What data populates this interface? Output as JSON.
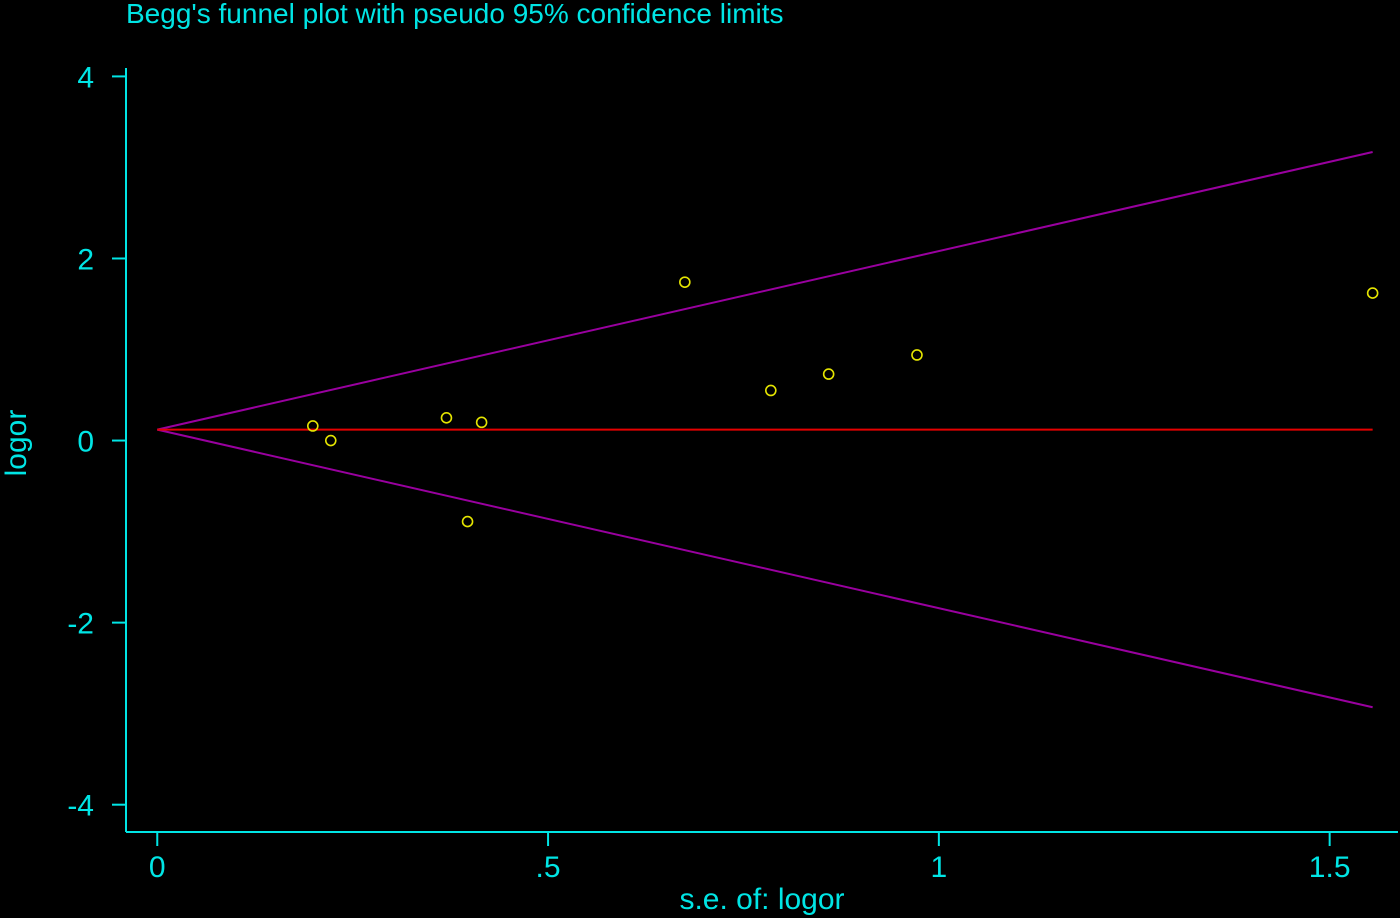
{
  "chart_data": {
    "type": "scatter",
    "title": "Begg's funnel plot with pseudo 95% confidence limits",
    "xlabel": "s.e. of: logor",
    "ylabel": "logor",
    "xlim": [
      -0.04,
      1.59
    ],
    "ylim": [
      -4.3,
      4.4
    ],
    "x_ticks": [
      {
        "value": 0,
        "label": "0"
      },
      {
        "value": 0.5,
        "label": ".5"
      },
      {
        "value": 1,
        "label": "1"
      },
      {
        "value": 1.5,
        "label": "1.5"
      }
    ],
    "y_ticks": [
      {
        "value": 4,
        "label": "4"
      },
      {
        "value": 2,
        "label": "2"
      },
      {
        "value": 0,
        "label": "0"
      },
      {
        "value": -2,
        "label": "-2"
      },
      {
        "value": -4,
        "label": "-4"
      }
    ],
    "grid": false,
    "points": [
      {
        "x": 0.199,
        "y": 0.16
      },
      {
        "x": 0.222,
        "y": 0.0
      },
      {
        "x": 0.37,
        "y": 0.25
      },
      {
        "x": 0.397,
        "y": -0.89
      },
      {
        "x": 0.415,
        "y": 0.2
      },
      {
        "x": 0.675,
        "y": 1.74
      },
      {
        "x": 0.785,
        "y": 0.55
      },
      {
        "x": 0.859,
        "y": 0.73
      },
      {
        "x": 0.972,
        "y": 0.94
      },
      {
        "x": 1.555,
        "y": 1.62
      }
    ],
    "pooled_estimate": {
      "value": 0.12,
      "x_range": [
        0,
        1.555
      ]
    },
    "confidence_limits": {
      "upper": [
        {
          "x": 0,
          "y": 0.12
        },
        {
          "x": 1.555,
          "y": 3.17
        }
      ],
      "lower": [
        {
          "x": 0,
          "y": 0.12
        },
        {
          "x": 1.555,
          "y": -2.93
        }
      ]
    },
    "colors": {
      "background": "#000000",
      "axes_text": "#00e5e5",
      "points": "#e5e500",
      "pooled_line": "#e50000",
      "limit_lines": "#99009f"
    }
  }
}
